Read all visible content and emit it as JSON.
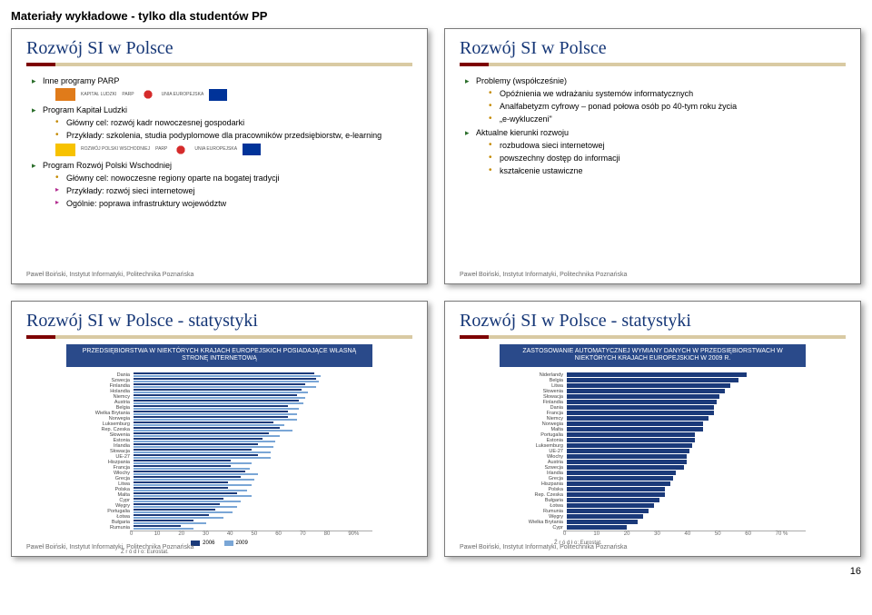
{
  "page_header": "Materiały wykładowe - tylko dla studentów PP",
  "page_number": "16",
  "footer": "Paweł Boiński, Instytut Informatyki, Politechnika Poznańska",
  "slide1": {
    "title": "Rozwój SI w Polsce",
    "b1": "Inne programy PARP",
    "logos1": {
      "kapital": "KAPITAŁ LUDZKI",
      "parp": "PARP",
      "eu": "UNIA EUROPEJSKA"
    },
    "b2": "Program Kapitał Ludzki",
    "b2a": "Główny cel: rozwój kadr nowoczesnej gospodarki",
    "b2b": "Przykłady: szkolenia, studia podyplomowe dla pracowników przedsiębiorstw, e-learning",
    "logos2": {
      "rozwoj": "ROZWÓJ POLSKI WSCHODNIEJ",
      "parp": "PARP",
      "eu": "UNIA EUROPEJSKA"
    },
    "b3": "Program Rozwój Polski Wschodniej",
    "b3a": "Główny cel: nowoczesne regiony oparte na bogatej tradycji",
    "b3b": "Przykłady: rozwój sieci internetowej",
    "b3c": "Ogólnie: poprawa infrastruktury województw"
  },
  "slide2": {
    "title": "Rozwój SI w Polsce",
    "b1": "Problemy (współcześnie)",
    "b1a": "Opóźnienia we wdrażaniu systemów informatycznych",
    "b1b": "Analfabetyzm cyfrowy – ponad połowa osób po 40-tym roku życia",
    "b1c": "„e-wykluczeni\"",
    "b2": "Aktualne kierunki rozwoju",
    "b2a": "rozbudowa sieci internetowej",
    "b2b": "powszechny dostęp do informacji",
    "b2c": "kształcenie ustawiczne"
  },
  "slide3": {
    "title": "Rozwój SI w Polsce - statystyki",
    "banner": "PRZEDSIĘBIORSTWA W NIEKTÓRYCH KRAJACH EUROPEJSKICH POSIADAJĄCE WŁASNĄ STRONĘ INTERNETOWĄ",
    "colors": {
      "a": "#1b3a7a",
      "b": "#7aa6d6"
    },
    "plot_width_pct": 90,
    "countries": [
      {
        "name": "Dania",
        "a": 84,
        "b": 87
      },
      {
        "name": "Szwecja",
        "a": 85,
        "b": 86
      },
      {
        "name": "Finlandia",
        "a": 80,
        "b": 85
      },
      {
        "name": "Holandia",
        "a": 78,
        "b": 81
      },
      {
        "name": "Niemcy",
        "a": 76,
        "b": 80
      },
      {
        "name": "Austria",
        "a": 77,
        "b": 79
      },
      {
        "name": "Belgia",
        "a": 72,
        "b": 77
      },
      {
        "name": "Wielka Brytania",
        "a": 72,
        "b": 76
      },
      {
        "name": "Norwegia",
        "a": 72,
        "b": 76
      },
      {
        "name": "Luksemburg",
        "a": 65,
        "b": 70
      },
      {
        "name": "Rep. Czeska",
        "a": 68,
        "b": 74
      },
      {
        "name": "Słowenia",
        "a": 63,
        "b": 68
      },
      {
        "name": "Estonia",
        "a": 60,
        "b": 66
      },
      {
        "name": "Irlandia",
        "a": 58,
        "b": 65
      },
      {
        "name": "Słowacja",
        "a": 55,
        "b": 64
      },
      {
        "name": "UE-27",
        "a": 58,
        "b": 64
      },
      {
        "name": "Hiszpania",
        "a": 45,
        "b": 55
      },
      {
        "name": "Francja",
        "a": 45,
        "b": 54
      },
      {
        "name": "Włochy",
        "a": 52,
        "b": 58
      },
      {
        "name": "Grecja",
        "a": 50,
        "b": 56
      },
      {
        "name": "Litwa",
        "a": 44,
        "b": 55
      },
      {
        "name": "Polska",
        "a": 44,
        "b": 53
      },
      {
        "name": "Malta",
        "a": 48,
        "b": 55
      },
      {
        "name": "Cypr",
        "a": 42,
        "b": 50
      },
      {
        "name": "Węgry",
        "a": 40,
        "b": 48
      },
      {
        "name": "Portugalia",
        "a": 38,
        "b": 46
      },
      {
        "name": "Łotwa",
        "a": 35,
        "b": 42
      },
      {
        "name": "Bułgaria",
        "a": 28,
        "b": 34
      },
      {
        "name": "Rumunia",
        "a": 22,
        "b": 28
      }
    ],
    "axis": [
      "0",
      "10",
      "20",
      "30",
      "40",
      "50",
      "60",
      "70",
      "80",
      "90%"
    ],
    "legend_a": "2006",
    "legend_b": "2009",
    "source": "Ź r ó d ł o: Eurostat."
  },
  "slide4": {
    "title": "Rozwój SI w Polsce - statystyki",
    "banner": "ZASTOSOWANIE AUTOMATYCZNEJ WYMIANY DANYCH W PRZEDSIĘBIORSTWACH W NIEKTÓRYCH KRAJACH EUROPEJSKICH W 2009 R.",
    "color": "#1b3a7a",
    "plot_width_pct": 80,
    "countries": [
      {
        "name": "Niderlandy",
        "v": 66
      },
      {
        "name": "Belgia",
        "v": 63
      },
      {
        "name": "Litwa",
        "v": 60
      },
      {
        "name": "Słowenia",
        "v": 58
      },
      {
        "name": "Słowacja",
        "v": 56
      },
      {
        "name": "Finlandia",
        "v": 55
      },
      {
        "name": "Dania",
        "v": 54
      },
      {
        "name": "Francja",
        "v": 54
      },
      {
        "name": "Niemcy",
        "v": 52
      },
      {
        "name": "Norwegia",
        "v": 50
      },
      {
        "name": "Malta",
        "v": 50
      },
      {
        "name": "Portugalia",
        "v": 47
      },
      {
        "name": "Estonia",
        "v": 47
      },
      {
        "name": "Luksemburg",
        "v": 46
      },
      {
        "name": "UE-27",
        "v": 45
      },
      {
        "name": "Włochy",
        "v": 44
      },
      {
        "name": "Austria",
        "v": 44
      },
      {
        "name": "Szwecja",
        "v": 43
      },
      {
        "name": "Irlandia",
        "v": 40
      },
      {
        "name": "Grecja",
        "v": 39
      },
      {
        "name": "Hiszpania",
        "v": 38
      },
      {
        "name": "Polska",
        "v": 36
      },
      {
        "name": "Rep. Czeska",
        "v": 36
      },
      {
        "name": "Bułgaria",
        "v": 34
      },
      {
        "name": "Łotwa",
        "v": 32
      },
      {
        "name": "Rumunia",
        "v": 30
      },
      {
        "name": "Węgry",
        "v": 28
      },
      {
        "name": "Wielka Brytania",
        "v": 26
      },
      {
        "name": "Cypr",
        "v": 22
      }
    ],
    "axis": [
      "0",
      "10",
      "20",
      "30",
      "40",
      "50",
      "60",
      "70 %"
    ],
    "source": "Ź r ó d ł o: Eurostat."
  }
}
